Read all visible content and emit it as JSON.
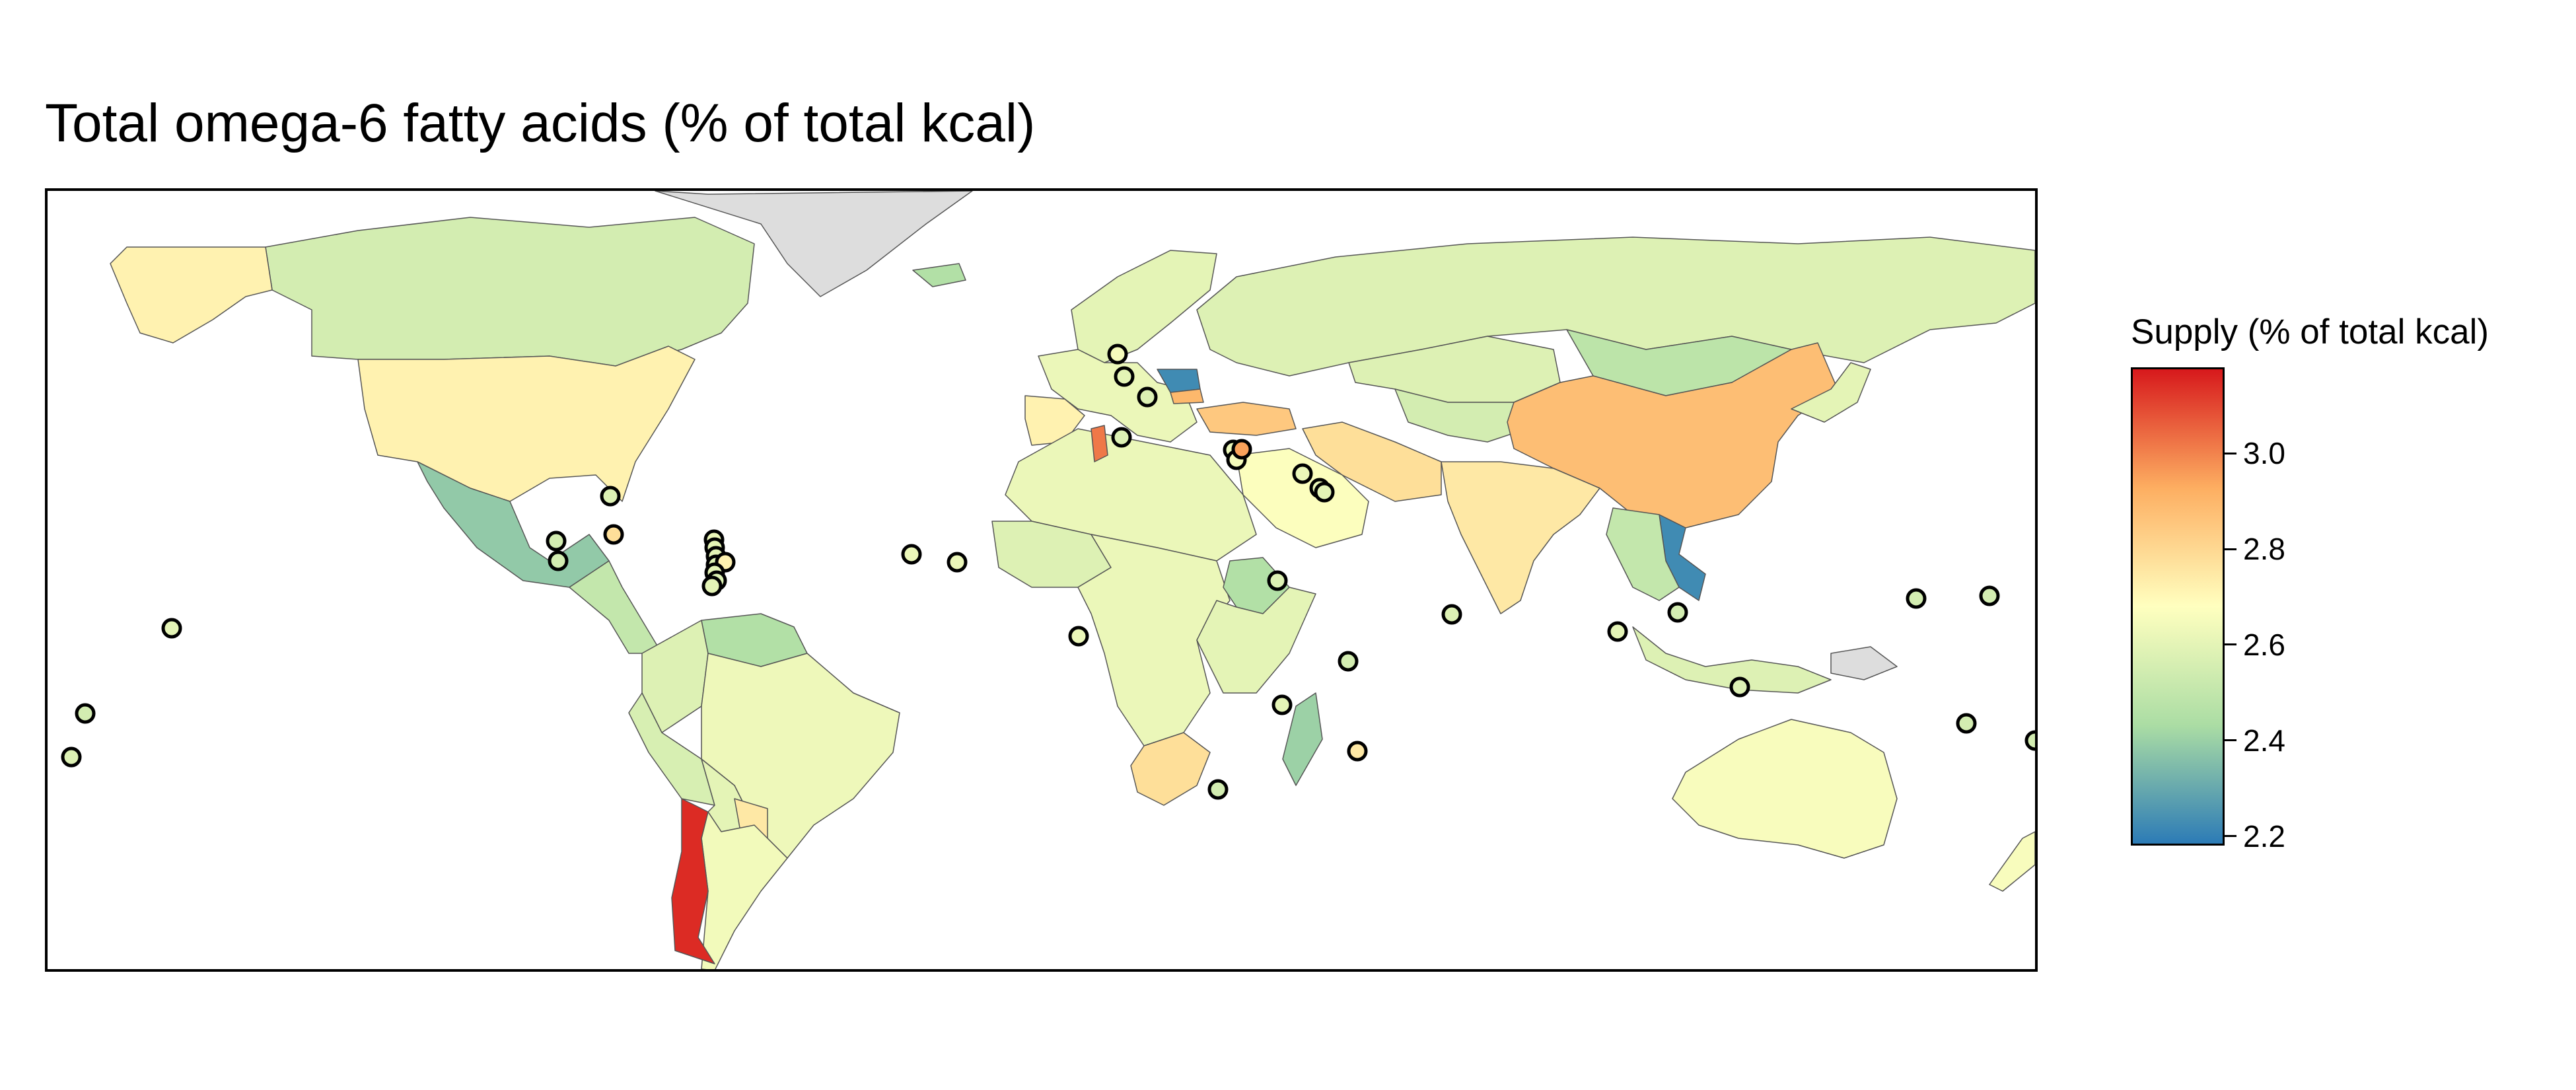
{
  "title": "Total omega-6 fatty acids (% of total kcal)",
  "legend": {
    "title": "Supply (% of total kcal)",
    "ticks": [
      "3.0",
      "2.8",
      "2.6",
      "2.4",
      "2.2"
    ],
    "min": 2.18,
    "max": 3.18,
    "colors": [
      "#2c7bb6",
      "#abdda4",
      "#ffffbf",
      "#fdae61",
      "#d7191c"
    ]
  },
  "map": {
    "type": "choropleth world map",
    "no_data_color": "#dddddd",
    "border_color": "#555555",
    "regions": [
      {
        "name": "Canada",
        "value": 2.55
      },
      {
        "name": "Alaska (USA)",
        "value": 2.72
      },
      {
        "name": "United States",
        "value": 2.72
      },
      {
        "name": "Mexico",
        "value": 2.38
      },
      {
        "name": "Central America",
        "value": 2.5
      },
      {
        "name": "Colombia",
        "value": 2.58
      },
      {
        "name": "Venezuela",
        "value": 2.45
      },
      {
        "name": "Brazil",
        "value": 2.63
      },
      {
        "name": "Peru",
        "value": 2.56
      },
      {
        "name": "Bolivia",
        "value": 2.6
      },
      {
        "name": "Paraguay",
        "value": 2.75
      },
      {
        "name": "Argentina",
        "value": 2.64
      },
      {
        "name": "Chile",
        "value": 3.15
      },
      {
        "name": "Greenland",
        "value": null
      },
      {
        "name": "Iceland",
        "value": 2.45
      },
      {
        "name": "Scandinavia",
        "value": 2.6
      },
      {
        "name": "Western Europe",
        "value": 2.62
      },
      {
        "name": "Spain",
        "value": 2.72
      },
      {
        "name": "Romania",
        "value": 2.22
      },
      {
        "name": "Bulgaria",
        "value": 2.9
      },
      {
        "name": "Turkey",
        "value": 2.85
      },
      {
        "name": "Russia",
        "value": 2.58
      },
      {
        "name": "Kazakhstan",
        "value": 2.58
      },
      {
        "name": "Central Asia",
        "value": 2.55
      },
      {
        "name": "Iran",
        "value": 2.78
      },
      {
        "name": "Saudi Arabia",
        "value": 2.67
      },
      {
        "name": "Mongolia",
        "value": 2.48
      },
      {
        "name": "China",
        "value": 2.88
      },
      {
        "name": "India",
        "value": 2.75
      },
      {
        "name": "Vietnam",
        "value": 2.22
      },
      {
        "name": "Southeast Asia",
        "value": 2.5
      },
      {
        "name": "Indonesia",
        "value": 2.58
      },
      {
        "name": "Papua New Guinea",
        "value": null
      },
      {
        "name": "Japan",
        "value": 2.6
      },
      {
        "name": "North Africa",
        "value": 2.62
      },
      {
        "name": "Tunisia",
        "value": 3.02
      },
      {
        "name": "West Africa",
        "value": 2.58
      },
      {
        "name": "Central Africa",
        "value": 2.62
      },
      {
        "name": "Ethiopia",
        "value": 2.45
      },
      {
        "name": "East Africa",
        "value": 2.6
      },
      {
        "name": "South Africa",
        "value": 2.78
      },
      {
        "name": "Madagascar",
        "value": 2.4
      },
      {
        "name": "Australia",
        "value": 2.66
      },
      {
        "name": "New Zealand",
        "value": 2.66
      }
    ],
    "small_states": [
      {
        "name": "Belgium",
        "value": 2.65
      },
      {
        "name": "Switzerland",
        "value": 2.6
      },
      {
        "name": "Slovenia",
        "value": 2.58
      },
      {
        "name": "Malta",
        "value": 2.58
      },
      {
        "name": "Lebanon",
        "value": 2.62
      },
      {
        "name": "Israel",
        "value": 2.65
      },
      {
        "name": "Jordan",
        "value": 2.95
      },
      {
        "name": "Kuwait",
        "value": 2.62
      },
      {
        "name": "Bahrain",
        "value": 2.62
      },
      {
        "name": "Qatar",
        "value": 2.6
      },
      {
        "name": "Bahamas",
        "value": 2.58
      },
      {
        "name": "Jamaica",
        "value": 2.78
      },
      {
        "name": "Belize",
        "value": 2.55
      },
      {
        "name": "El Salvador",
        "value": 2.55
      },
      {
        "name": "Antigua and Barbuda",
        "value": 2.62
      },
      {
        "name": "Saint Kitts and Nevis",
        "value": 2.6
      },
      {
        "name": "Dominica",
        "value": 2.6
      },
      {
        "name": "Saint Lucia",
        "value": 2.58
      },
      {
        "name": "Barbados",
        "value": 2.72
      },
      {
        "name": "Saint Vincent",
        "value": 2.6
      },
      {
        "name": "Grenada",
        "value": 2.58
      },
      {
        "name": "Trinidad and Tobago",
        "value": 2.6
      },
      {
        "name": "Cape Verde",
        "value": 2.62
      },
      {
        "name": "Gambia",
        "value": 2.62
      },
      {
        "name": "Sao Tome and Principe",
        "value": 2.62
      },
      {
        "name": "Djibouti",
        "value": 2.58
      },
      {
        "name": "Seychelles",
        "value": 2.55
      },
      {
        "name": "Comoros",
        "value": 2.6
      },
      {
        "name": "Mauritius",
        "value": 2.75
      },
      {
        "name": "Eswatini",
        "value": 2.55
      },
      {
        "name": "Maldives",
        "value": 2.58
      },
      {
        "name": "Singapore",
        "value": 2.6
      },
      {
        "name": "Brunei",
        "value": 2.55
      },
      {
        "name": "Timor-Leste",
        "value": 2.58
      },
      {
        "name": "Kiribati",
        "value": 2.55
      },
      {
        "name": "Marshall Islands",
        "value": 2.55
      },
      {
        "name": "Vanuatu",
        "value": 2.55
      },
      {
        "name": "Fiji",
        "value": 2.55
      },
      {
        "name": "Samoa",
        "value": 2.55
      },
      {
        "name": "French Polynesia",
        "value": 2.6
      },
      {
        "name": "Tonga",
        "value": 2.58
      }
    ]
  }
}
